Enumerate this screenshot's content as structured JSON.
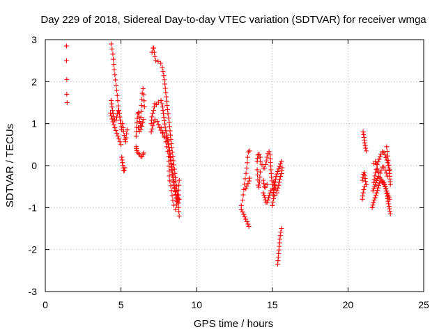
{
  "chart_data": {
    "type": "scatter",
    "title": "Day 229 of 2018, Sidereal Day-to-day VTEC variation (SDTVAR) for receiver wmga",
    "xlabel": "GPS time / hours",
    "ylabel": "SDTVAR / TECUs",
    "xlim": [
      0,
      25
    ],
    "ylim": [
      -3,
      3
    ],
    "xticks": [
      0,
      5,
      10,
      15,
      20,
      25
    ],
    "yticks": [
      -3,
      -2,
      -1,
      0,
      1,
      2,
      3
    ],
    "grid": true,
    "marker": "+",
    "color": "#ff0000",
    "segments": [
      {
        "points": [
          [
            1.4,
            2.85
          ],
          [
            1.4,
            2.5
          ],
          [
            1.42,
            2.05
          ],
          [
            1.42,
            1.7
          ],
          [
            1.44,
            1.5
          ]
        ]
      },
      {
        "path": [
          [
            4.35,
            2.9
          ],
          [
            4.45,
            2.7
          ],
          [
            4.55,
            2.3
          ],
          [
            4.65,
            2.0
          ],
          [
            4.75,
            1.7
          ],
          [
            4.8,
            1.5
          ],
          [
            4.85,
            1.3
          ]
        ],
        "n": 14
      },
      {
        "path": [
          [
            4.35,
            1.55
          ],
          [
            4.45,
            1.3
          ],
          [
            4.55,
            1.1
          ],
          [
            4.65,
            1.05
          ],
          [
            4.75,
            1.2
          ],
          [
            4.85,
            1.35
          ],
          [
            4.95,
            1.1
          ],
          [
            5.05,
            0.85
          ]
        ],
        "n": 18
      },
      {
        "path": [
          [
            4.3,
            1.25
          ],
          [
            4.5,
            1.0
          ],
          [
            4.7,
            0.8
          ],
          [
            4.85,
            0.65
          ],
          [
            4.95,
            0.55
          ],
          [
            5.0,
            0.5
          ]
        ],
        "n": 12
      },
      {
        "path": [
          [
            5.1,
            1.0
          ],
          [
            5.2,
            0.75
          ],
          [
            5.3,
            0.55
          ],
          [
            5.35,
            0.7
          ],
          [
            5.4,
            0.85
          ]
        ],
        "n": 9
      },
      {
        "path": [
          [
            5.05,
            0.2
          ],
          [
            5.1,
            0.05
          ],
          [
            5.15,
            -0.05
          ],
          [
            5.2,
            -0.15
          ],
          [
            5.25,
            -0.05
          ]
        ],
        "n": 8
      },
      {
        "path": [
          [
            6.0,
            0.7
          ],
          [
            6.05,
            1.0
          ],
          [
            6.1,
            1.2
          ],
          [
            6.15,
            1.3
          ],
          [
            6.25,
            1.0
          ],
          [
            6.3,
            0.95
          ]
        ],
        "n": 10
      },
      {
        "path": [
          [
            6.3,
            1.0
          ],
          [
            6.35,
            1.4
          ],
          [
            6.4,
            1.7
          ],
          [
            6.45,
            1.85
          ],
          [
            6.5,
            1.7
          ],
          [
            6.55,
            1.4
          ]
        ],
        "n": 10
      },
      {
        "path": [
          [
            6.0,
            0.45
          ],
          [
            6.05,
            0.35
          ],
          [
            6.1,
            0.3
          ],
          [
            6.15,
            0.3
          ],
          [
            6.25,
            0.25
          ],
          [
            6.35,
            0.2
          ],
          [
            6.45,
            0.25
          ],
          [
            6.5,
            0.3
          ]
        ],
        "n": 10
      },
      {
        "path": [
          [
            6.15,
            0.9
          ],
          [
            6.25,
            0.8
          ],
          [
            6.35,
            0.9
          ],
          [
            6.45,
            1.05
          ],
          [
            6.5,
            1.1
          ]
        ],
        "n": 6
      },
      {
        "path": [
          [
            7.05,
            2.7
          ],
          [
            7.15,
            2.85
          ],
          [
            7.25,
            2.55
          ],
          [
            7.35,
            2.45
          ],
          [
            7.5,
            2.5
          ],
          [
            7.6,
            2.45
          ],
          [
            7.7,
            2.4
          ],
          [
            7.8,
            2.2
          ],
          [
            7.9,
            1.95
          ],
          [
            8.0,
            1.6
          ],
          [
            8.1,
            1.25
          ],
          [
            8.2,
            1.0
          ],
          [
            8.3,
            0.6
          ],
          [
            8.4,
            0.3
          ],
          [
            8.5,
            0.0
          ],
          [
            8.6,
            -0.3
          ],
          [
            8.7,
            -0.6
          ],
          [
            8.8,
            -1.0
          ],
          [
            8.85,
            -1.2
          ]
        ],
        "n": 44
      },
      {
        "path": [
          [
            7.0,
            1.0
          ],
          [
            7.05,
            1.2
          ],
          [
            7.15,
            1.3
          ],
          [
            7.25,
            1.5
          ],
          [
            7.35,
            1.45
          ],
          [
            7.45,
            1.5
          ],
          [
            7.55,
            1.55
          ],
          [
            7.65,
            1.55
          ],
          [
            7.75,
            1.4
          ],
          [
            7.85,
            1.1
          ],
          [
            7.95,
            0.85
          ],
          [
            8.05,
            0.7
          ],
          [
            8.15,
            0.5
          ],
          [
            8.25,
            0.25
          ],
          [
            8.35,
            -0.1
          ],
          [
            8.45,
            -0.3
          ],
          [
            8.55,
            -0.55
          ],
          [
            8.65,
            -0.75
          ],
          [
            8.75,
            -0.9
          ],
          [
            8.85,
            -0.8
          ]
        ],
        "n": 42
      },
      {
        "path": [
          [
            7.0,
            0.8
          ],
          [
            7.1,
            0.95
          ],
          [
            7.25,
            1.1
          ],
          [
            7.4,
            1.05
          ],
          [
            7.55,
            0.9
          ],
          [
            7.7,
            0.8
          ],
          [
            7.85,
            0.7
          ],
          [
            8.0,
            0.65
          ],
          [
            8.1,
            0.55
          ],
          [
            8.2,
            0.35
          ],
          [
            8.3,
            0.1
          ],
          [
            8.4,
            -0.2
          ],
          [
            8.5,
            -0.45
          ],
          [
            8.6,
            -0.65
          ],
          [
            8.7,
            -0.85
          ],
          [
            8.8,
            -0.7
          ]
        ],
        "n": 34
      },
      {
        "path": [
          [
            7.65,
            0.9
          ],
          [
            7.8,
            0.75
          ],
          [
            7.95,
            0.6
          ],
          [
            8.05,
            0.4
          ],
          [
            8.15,
            0.25
          ],
          [
            8.2,
            -0.3
          ],
          [
            8.3,
            -0.5
          ],
          [
            8.45,
            -0.9
          ],
          [
            8.6,
            -1.05
          ],
          [
            8.75,
            -0.85
          ],
          [
            8.85,
            -0.35
          ]
        ],
        "n": 24
      },
      {
        "path": [
          [
            12.95,
            -0.95
          ],
          [
            13.05,
            -0.8
          ],
          [
            13.15,
            -0.45
          ],
          [
            13.3,
            -0.1
          ],
          [
            13.4,
            0.3
          ],
          [
            13.45,
            0.4
          ],
          [
            13.5,
            0.35
          ]
        ],
        "n": 12
      },
      {
        "path": [
          [
            12.95,
            -1.05
          ],
          [
            13.1,
            -1.15
          ],
          [
            13.2,
            -1.25
          ],
          [
            13.35,
            -1.35
          ],
          [
            13.45,
            -1.45
          ]
        ],
        "n": 8
      },
      {
        "path": [
          [
            13.25,
            -0.55
          ],
          [
            13.35,
            -0.45
          ],
          [
            13.45,
            -0.4
          ],
          [
            13.5,
            -0.3
          ]
        ],
        "n": 5
      },
      {
        "path": [
          [
            14.0,
            -0.1
          ],
          [
            14.05,
            -0.4
          ],
          [
            14.1,
            -0.55
          ],
          [
            14.15,
            -0.4
          ],
          [
            14.2,
            -0.15
          ]
        ],
        "n": 8
      },
      {
        "path": [
          [
            14.0,
            0.1
          ],
          [
            14.05,
            0.25
          ],
          [
            14.1,
            0.3
          ],
          [
            14.2,
            0.2
          ]
        ],
        "n": 5
      },
      {
        "path": [
          [
            14.2,
            0.1
          ],
          [
            14.35,
            0.0
          ],
          [
            14.45,
            -0.1
          ],
          [
            14.55,
            0.0
          ],
          [
            14.65,
            0.2
          ],
          [
            14.75,
            0.35
          ],
          [
            14.85,
            0.3
          ],
          [
            14.9,
            -0.05
          ],
          [
            14.95,
            -0.3
          ],
          [
            15.0,
            -0.45
          ]
        ],
        "n": 18
      },
      {
        "path": [
          [
            14.4,
            -0.65
          ],
          [
            14.5,
            -0.75
          ],
          [
            14.6,
            -0.9
          ],
          [
            14.7,
            -0.85
          ],
          [
            14.8,
            -0.7
          ],
          [
            14.9,
            -0.6
          ],
          [
            15.0,
            -0.55
          ]
        ],
        "n": 12
      },
      {
        "path": [
          [
            14.4,
            -0.35
          ],
          [
            14.5,
            -0.55
          ],
          [
            14.55,
            -0.5
          ],
          [
            14.65,
            -0.45
          ]
        ],
        "n": 5
      },
      {
        "path": [
          [
            15.05,
            -0.7
          ],
          [
            15.15,
            -0.45
          ],
          [
            15.25,
            -0.25
          ],
          [
            15.35,
            -0.15
          ],
          [
            15.45,
            -0.05
          ],
          [
            15.55,
            0.05
          ],
          [
            15.6,
            0.1
          ]
        ],
        "n": 14
      },
      {
        "path": [
          [
            15.1,
            -0.4
          ],
          [
            15.2,
            -0.55
          ],
          [
            15.3,
            -0.6
          ],
          [
            15.4,
            -0.5
          ],
          [
            15.5,
            -0.3
          ],
          [
            15.6,
            -0.2
          ],
          [
            15.65,
            -0.05
          ]
        ],
        "n": 12
      },
      {
        "path": [
          [
            15.0,
            -0.95
          ],
          [
            15.1,
            -0.75
          ],
          [
            15.2,
            -0.7
          ],
          [
            15.3,
            -0.65
          ]
        ],
        "n": 5
      },
      {
        "path": [
          [
            15.35,
            -2.35
          ],
          [
            15.4,
            -2.15
          ],
          [
            15.45,
            -1.95
          ],
          [
            15.5,
            -1.75
          ],
          [
            15.55,
            -1.6
          ],
          [
            15.6,
            -1.5
          ]
        ],
        "n": 11
      },
      {
        "path": [
          [
            21.0,
            0.8
          ],
          [
            21.05,
            0.7
          ],
          [
            21.1,
            0.55
          ],
          [
            21.15,
            0.45
          ],
          [
            21.2,
            0.35
          ]
        ],
        "n": 8
      },
      {
        "path": [
          [
            20.95,
            -0.35
          ],
          [
            21.0,
            -0.25
          ],
          [
            21.05,
            -0.15
          ],
          [
            21.1,
            -0.2
          ],
          [
            21.15,
            -0.35
          ],
          [
            21.2,
            -0.45
          ]
        ],
        "n": 8
      },
      {
        "path": [
          [
            20.95,
            -0.8
          ],
          [
            21.0,
            -0.65
          ],
          [
            21.05,
            -0.55
          ],
          [
            21.1,
            -0.5
          ]
        ],
        "n": 5
      },
      {
        "path": [
          [
            21.6,
            -1.0
          ],
          [
            21.7,
            -0.85
          ],
          [
            21.8,
            -0.75
          ],
          [
            21.9,
            -0.65
          ],
          [
            22.0,
            -0.5
          ],
          [
            22.1,
            -0.4
          ],
          [
            22.2,
            -0.35
          ],
          [
            22.3,
            -0.4
          ],
          [
            22.4,
            -0.45
          ],
          [
            22.5,
            -0.55
          ],
          [
            22.6,
            -0.75
          ],
          [
            22.7,
            -0.95
          ],
          [
            22.8,
            -1.15
          ]
        ],
        "n": 26
      },
      {
        "path": [
          [
            21.65,
            -0.6
          ],
          [
            21.75,
            -0.5
          ],
          [
            21.85,
            -0.4
          ],
          [
            21.95,
            -0.3
          ],
          [
            22.05,
            -0.25
          ],
          [
            22.15,
            -0.3
          ],
          [
            22.25,
            -0.35
          ],
          [
            22.35,
            -0.4
          ],
          [
            22.45,
            -0.5
          ],
          [
            22.55,
            -0.6
          ],
          [
            22.65,
            -0.7
          ],
          [
            22.75,
            -0.8
          ]
        ],
        "n": 20
      },
      {
        "path": [
          [
            21.7,
            0.05
          ],
          [
            21.8,
            0.1
          ],
          [
            21.9,
            0.0
          ],
          [
            22.0,
            0.1
          ],
          [
            22.1,
            0.2
          ],
          [
            22.2,
            0.3
          ],
          [
            22.3,
            0.35
          ],
          [
            22.4,
            0.3
          ],
          [
            22.5,
            0.2
          ],
          [
            22.6,
            0.1
          ],
          [
            22.7,
            -0.05
          ],
          [
            22.75,
            -0.2
          ],
          [
            22.8,
            -0.45
          ]
        ],
        "n": 22
      },
      {
        "path": [
          [
            21.7,
            -0.4
          ],
          [
            21.8,
            -0.2
          ],
          [
            21.9,
            -0.05
          ],
          [
            22.0,
            -0.15
          ],
          [
            22.1,
            -0.2
          ],
          [
            22.2,
            -0.1
          ],
          [
            22.3,
            0.0
          ],
          [
            22.4,
            -0.05
          ],
          [
            22.5,
            -0.15
          ],
          [
            22.6,
            -0.25
          ]
        ],
        "n": 14
      },
      {
        "path": [
          [
            22.55,
            0.45
          ],
          [
            22.6,
            0.3
          ],
          [
            22.65,
            0.15
          ],
          [
            22.7,
            0.0
          ],
          [
            22.75,
            -0.1
          ]
        ],
        "n": 6
      }
    ]
  }
}
